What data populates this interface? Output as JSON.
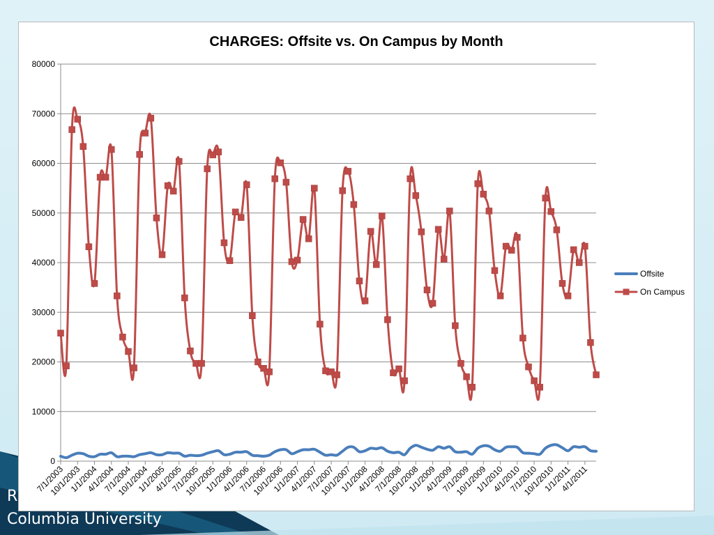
{
  "slide": {
    "footer_line1": "R",
    "footer_line2": "Columbia University",
    "accent_color": "#0e3a57"
  },
  "chart_data": {
    "type": "line",
    "title": "CHARGES: Offsite vs. On Campus by Month",
    "xlabel": "",
    "ylabel": "",
    "ylim": [
      0,
      80000
    ],
    "yticks": [
      0,
      10000,
      20000,
      30000,
      40000,
      50000,
      60000,
      70000,
      80000
    ],
    "grid": true,
    "legend_position": "right",
    "x_tick_labels": [
      "7/1/2003",
      "10/1/2003",
      "1/1/2004",
      "4/1/2004",
      "7/1/2004",
      "10/1/2004",
      "1/1/2005",
      "4/1/2005",
      "7/1/2005",
      "10/1/2005",
      "1/1/2006",
      "4/1/2006",
      "7/1/2006",
      "10/1/2006",
      "1/1/2007",
      "4/1/2007",
      "7/1/2007",
      "10/1/2007",
      "1/1/2008",
      "4/1/2008",
      "7/1/2008",
      "10/1/2008",
      "1/1/2009",
      "4/1/2009",
      "7/1/2009",
      "10/1/2009",
      "1/1/2010",
      "4/1/2010",
      "7/1/2010",
      "10/1/2010",
      "1/1/2011",
      "4/1/2011"
    ],
    "x": [
      "7/1/2003",
      "8/1/2003",
      "9/1/2003",
      "10/1/2003",
      "11/1/2003",
      "12/1/2003",
      "1/1/2004",
      "2/1/2004",
      "3/1/2004",
      "4/1/2004",
      "5/1/2004",
      "6/1/2004",
      "7/1/2004",
      "8/1/2004",
      "9/1/2004",
      "10/1/2004",
      "11/1/2004",
      "12/1/2004",
      "1/1/2005",
      "2/1/2005",
      "3/1/2005",
      "4/1/2005",
      "5/1/2005",
      "6/1/2005",
      "7/1/2005",
      "8/1/2005",
      "9/1/2005",
      "10/1/2005",
      "11/1/2005",
      "12/1/2005",
      "1/1/2006",
      "2/1/2006",
      "3/1/2006",
      "4/1/2006",
      "5/1/2006",
      "6/1/2006",
      "7/1/2006",
      "8/1/2006",
      "9/1/2006",
      "10/1/2006",
      "11/1/2006",
      "12/1/2006",
      "1/1/2007",
      "2/1/2007",
      "3/1/2007",
      "4/1/2007",
      "5/1/2007",
      "6/1/2007",
      "7/1/2007",
      "8/1/2007",
      "9/1/2007",
      "10/1/2007",
      "11/1/2007",
      "12/1/2007",
      "1/1/2008",
      "2/1/2008",
      "3/1/2008",
      "4/1/2008",
      "5/1/2008",
      "6/1/2008",
      "7/1/2008",
      "8/1/2008",
      "9/1/2008",
      "10/1/2008",
      "11/1/2008",
      "12/1/2008",
      "1/1/2009",
      "2/1/2009",
      "3/1/2009",
      "4/1/2009",
      "5/1/2009",
      "6/1/2009",
      "7/1/2009",
      "8/1/2009",
      "9/1/2009",
      "10/1/2009",
      "11/1/2009",
      "12/1/2009",
      "1/1/2010",
      "2/1/2010",
      "3/1/2010",
      "4/1/2010",
      "5/1/2010",
      "6/1/2010",
      "7/1/2010",
      "8/1/2010",
      "9/1/2010",
      "10/1/2010",
      "11/1/2010",
      "12/1/2010",
      "1/1/2011",
      "2/1/2011",
      "3/1/2011",
      "4/1/2011",
      "5/1/2011",
      "6/1/2011"
    ],
    "series": [
      {
        "name": "Offsite",
        "color": "#4a7ebb",
        "marker": "none",
        "values": [
          1000,
          700,
          1200,
          1600,
          1500,
          1000,
          900,
          1400,
          1400,
          1700,
          900,
          1000,
          1000,
          900,
          1300,
          1500,
          1700,
          1300,
          1300,
          1700,
          1600,
          1600,
          1000,
          1200,
          1100,
          1200,
          1600,
          1900,
          2100,
          1300,
          1400,
          1800,
          1800,
          1900,
          1200,
          1100,
          1000,
          1200,
          1900,
          2300,
          2300,
          1500,
          1900,
          2300,
          2300,
          2400,
          1800,
          1200,
          1300,
          1200,
          2000,
          2800,
          2800,
          1900,
          2100,
          2600,
          2500,
          2700,
          2000,
          1700,
          1800,
          1300,
          2600,
          3200,
          2800,
          2400,
          2200,
          2900,
          2600,
          2900,
          1900,
          1800,
          1900,
          1400,
          2600,
          3100,
          3000,
          2300,
          2000,
          2800,
          2900,
          2800,
          1700,
          1600,
          1500,
          1400,
          2600,
          3200,
          3300,
          2700,
          2100,
          2900,
          2800,
          2900,
          2100,
          2000
        ]
      },
      {
        "name": "On Campus",
        "color": "#be4b48",
        "marker": "square",
        "values": [
          25800,
          19200,
          66800,
          68900,
          63400,
          43200,
          35800,
          57200,
          57200,
          62800,
          33300,
          25000,
          22100,
          18800,
          61800,
          66100,
          69100,
          49000,
          41600,
          55500,
          54400,
          60400,
          32900,
          22200,
          19700,
          19700,
          58900,
          61700,
          62300,
          44000,
          40400,
          50200,
          49100,
          55700,
          29300,
          20000,
          18700,
          18000,
          56900,
          60100,
          56200,
          40200,
          40500,
          48700,
          44800,
          55000,
          27600,
          18200,
          18000,
          17400,
          54500,
          58400,
          51700,
          36300,
          32300,
          46300,
          39600,
          49400,
          28500,
          17800,
          18600,
          16200,
          56900,
          53500,
          46200,
          34500,
          31800,
          46700,
          40700,
          50400,
          27300,
          19700,
          17000,
          14900,
          55900,
          53800,
          50400,
          38400,
          33300,
          43300,
          42500,
          45100,
          24800,
          19000,
          16200,
          14900,
          53000,
          50300,
          46600,
          35800,
          33300,
          42600,
          40000,
          43300,
          23900,
          17400
        ]
      }
    ]
  }
}
